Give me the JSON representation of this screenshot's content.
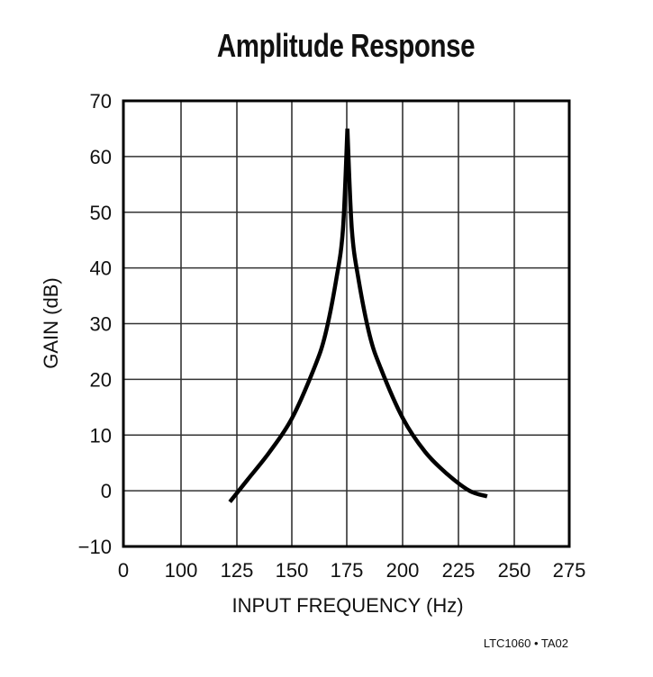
{
  "title": "Amplitude Response",
  "footer": "LTC1060 • TA02",
  "chart_data": {
    "type": "line",
    "title": "Amplitude Response",
    "xlabel": "INPUT FREQUENCY (Hz)",
    "ylabel": "GAIN (dB)",
    "x_ticks": [
      "0",
      "100",
      "125",
      "150",
      "175",
      "200",
      "225",
      "250",
      "275"
    ],
    "y_ticks": [
      "70",
      "60",
      "50",
      "40",
      "30",
      "20",
      "10",
      "0",
      "−10"
    ],
    "ylim": [
      -10,
      70
    ],
    "xlim_ticks_note": "non-uniform first interval (0 to 100)",
    "grid": true,
    "legend": null,
    "series": [
      {
        "name": "Gain",
        "x": [
          122,
          130,
          140,
          150,
          160,
          165,
          170,
          173,
          175,
          177,
          180,
          185,
          190,
          200,
          210,
          220,
          230,
          238
        ],
        "y": [
          -2,
          2,
          7,
          13,
          22,
          28,
          38,
          47,
          65,
          47,
          38,
          28,
          22,
          13,
          7,
          3,
          0,
          -1
        ]
      }
    ]
  }
}
